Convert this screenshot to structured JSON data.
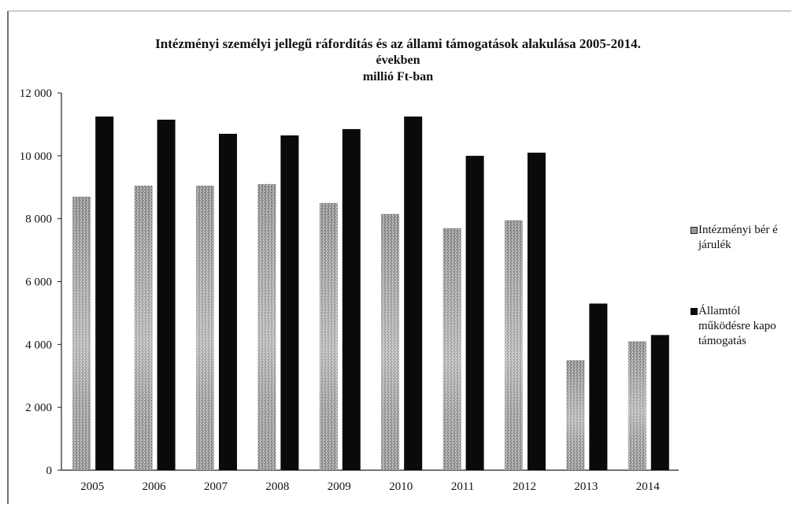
{
  "title_lines": [
    "Intézményi személyi jellegű ráfordítás és az állami támogatások alakulása 2005-2014.",
    "években",
    "millió Ft-ban"
  ],
  "colors": {
    "series1": "#8a8a8a",
    "series1_light": "#c8c8c8",
    "series2": "#0a0a0a",
    "axis": "#222222"
  },
  "legend": {
    "position": "right",
    "items": [
      {
        "swatch": "dotted-gray-square",
        "lines": [
          "Intézményi bér é",
          "járulék"
        ]
      },
      {
        "swatch": "black-square",
        "lines": [
          "Államtól",
          "működésre kapo",
          "támogatás"
        ]
      }
    ]
  },
  "chart_data": {
    "type": "bar",
    "categories": [
      "2005",
      "2006",
      "2007",
      "2008",
      "2009",
      "2010",
      "2011",
      "2012",
      "2013",
      "2014"
    ],
    "series": [
      {
        "name": "Intézményi bér é járulék",
        "values": [
          8700,
          9050,
          9050,
          9100,
          8500,
          8150,
          7700,
          7950,
          3500,
          4100
        ]
      },
      {
        "name": "Államtól működésre kapo támogatás",
        "values": [
          11250,
          11150,
          10700,
          10650,
          10850,
          11250,
          10000,
          10100,
          5300,
          4300
        ]
      }
    ],
    "ylim": [
      0,
      12000
    ],
    "yticks": [
      0,
      2000,
      4000,
      6000,
      8000,
      10000,
      12000
    ],
    "ytick_labels": [
      "0",
      "2 000",
      "4 000",
      "6 000",
      "8 000",
      "10 000",
      "12 000"
    ],
    "grid": false
  }
}
